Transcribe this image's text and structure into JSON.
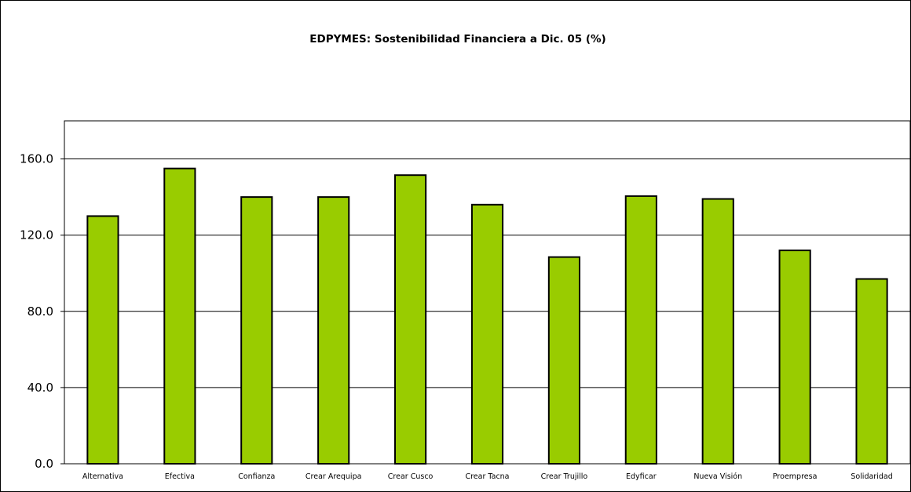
{
  "chart_data": {
    "type": "bar",
    "title": "EDPYMES: Sostenibilidad Financiera a  Dic. 05 (%)",
    "xlabel": "",
    "ylabel": "",
    "categories": [
      "Alternativa",
      "Efectiva",
      "Confianza",
      "Crear Arequipa",
      "Crear Cusco",
      "Crear Tacna",
      "Crear Trujillo",
      "Edyficar",
      "Nueva Visión",
      "Proempresa",
      "Solidaridad"
    ],
    "values": [
      130.0,
      155.0,
      140.0,
      140.0,
      151.5,
      136.0,
      108.5,
      140.5,
      139.0,
      112.0,
      97.0
    ],
    "ylim": [
      0,
      180
    ],
    "yticks": [
      0,
      40,
      80,
      120,
      160
    ],
    "ytick_labels": [
      "0.0",
      "40.0",
      "80.0",
      "120.0",
      "160.0"
    ],
    "grid": true,
    "legend": "none",
    "bar_color": "#99cc00",
    "bar_edge_color": "#000000"
  }
}
